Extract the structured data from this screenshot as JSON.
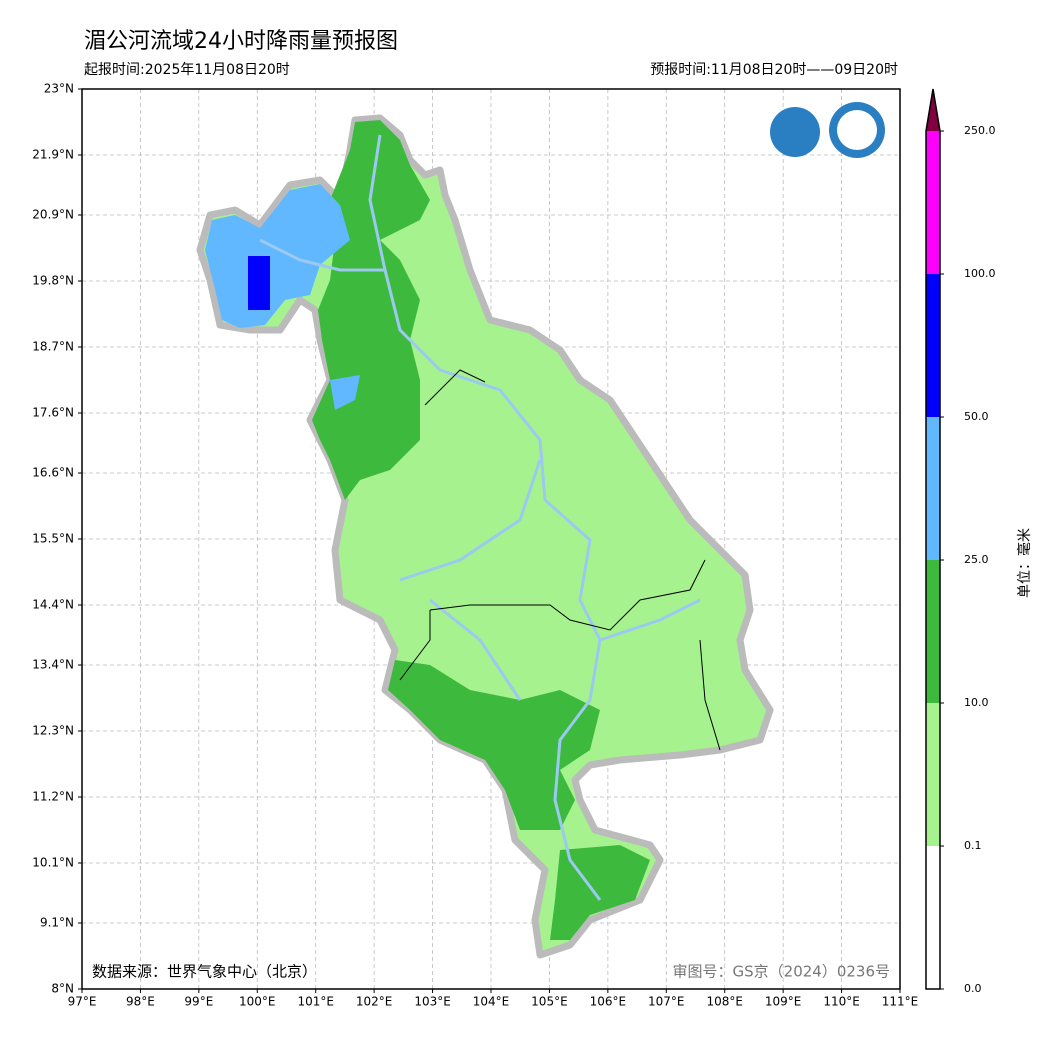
{
  "header": {
    "title": "湄公河流域24小时降雨量预报图",
    "issue_time": "起报时间:2025年11月08日20时",
    "valid_time": "预报时间:11月08日20时——09日20时"
  },
  "map": {
    "xlim": [
      97,
      111
    ],
    "ylim": [
      8,
      23
    ],
    "lon_ticks": [
      {
        "value": 97,
        "label": "97°E"
      },
      {
        "value": 98,
        "label": "98°E"
      },
      {
        "value": 99,
        "label": "99°E"
      },
      {
        "value": 100,
        "label": "100°E"
      },
      {
        "value": 101,
        "label": "101°E"
      },
      {
        "value": 102,
        "label": "102°E"
      },
      {
        "value": 103,
        "label": "103°E"
      },
      {
        "value": 104,
        "label": "104°E"
      },
      {
        "value": 105,
        "label": "105°E"
      },
      {
        "value": 106,
        "label": "106°E"
      },
      {
        "value": 107,
        "label": "107°E"
      },
      {
        "value": 108,
        "label": "108°E"
      },
      {
        "value": 109,
        "label": "109°E"
      },
      {
        "value": 110,
        "label": "110°E"
      },
      {
        "value": 111,
        "label": "111°E"
      }
    ],
    "lat_ticks": [
      {
        "value": 8,
        "label": "8°N"
      },
      {
        "value": 9.1,
        "label": "9.1°N"
      },
      {
        "value": 10.1,
        "label": "10.1°N"
      },
      {
        "value": 11.2,
        "label": "11.2°N"
      },
      {
        "value": 12.3,
        "label": "12.3°N"
      },
      {
        "value": 13.4,
        "label": "13.4°N"
      },
      {
        "value": 14.4,
        "label": "14.4°N"
      },
      {
        "value": 15.5,
        "label": "15.5°N"
      },
      {
        "value": 16.6,
        "label": "16.6°N"
      },
      {
        "value": 17.6,
        "label": "17.6°N"
      },
      {
        "value": 18.7,
        "label": "18.7°N"
      },
      {
        "value": 19.8,
        "label": "19.8°N"
      },
      {
        "value": 20.9,
        "label": "20.9°N"
      },
      {
        "value": 21.9,
        "label": "21.9°N"
      },
      {
        "value": 23,
        "label": "23°N"
      }
    ],
    "grid": true,
    "source": "数据来源：世界气象中心（北京）",
    "review_number": "审图号：GS京（2024）0236号"
  },
  "colorbar": {
    "label": "单位：毫米",
    "levels": [
      {
        "value": 0,
        "label": "0.0"
      },
      {
        "value": 0.1,
        "label": "0.1"
      },
      {
        "value": 10,
        "label": "10.0"
      },
      {
        "value": 25,
        "label": "25.0"
      },
      {
        "value": 50,
        "label": "50.0"
      },
      {
        "value": 100,
        "label": "100.0"
      },
      {
        "value": 250,
        "label": "250.0"
      }
    ],
    "colors": [
      "#ffffff",
      "#a6f28f",
      "#3dba3d",
      "#61b8ff",
      "#0000ff",
      "#fa00fa"
    ],
    "extend_color": "#800040"
  }
}
